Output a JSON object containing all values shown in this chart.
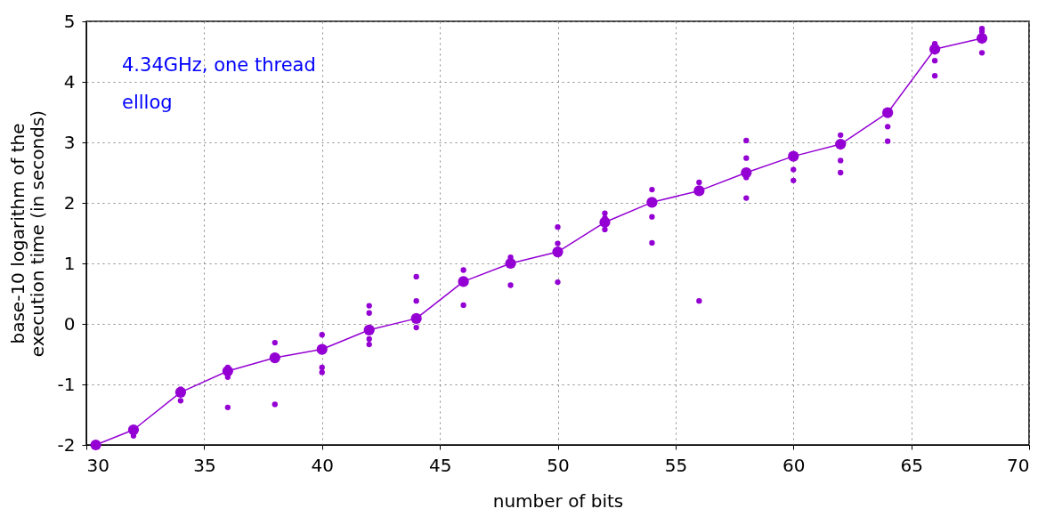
{
  "chart_data": {
    "type": "line",
    "xlabel": "number of bits",
    "ylabel": "base-10 logarithm of the\nexecution time (in seconds)",
    "annotations": [
      "4.34GHz, one thread",
      "elllog"
    ],
    "xlim": [
      30,
      70
    ],
    "ylim": [
      -2,
      5
    ],
    "xticks": [
      30,
      35,
      40,
      45,
      50,
      55,
      60,
      65,
      70
    ],
    "yticks": [
      -2,
      -1,
      0,
      1,
      2,
      3,
      4,
      5
    ],
    "grid": true,
    "series": [
      {
        "color": "#9400d3",
        "marker": "circle",
        "line_style": "solid",
        "x": [
          30.4,
          32,
          34,
          36,
          38,
          40,
          42,
          44,
          46,
          48,
          50,
          52,
          54,
          56,
          58,
          60,
          62,
          64,
          66,
          68
        ],
        "values": [
          -2,
          -1.75,
          -1.13,
          -0.78,
          -0.56,
          -0.42,
          -0.1,
          0.09,
          0.7,
          1.0,
          1.19,
          1.68,
          2.01,
          2.2,
          2.5,
          2.77,
          2.97,
          3.49,
          4.54,
          4.72
        ]
      },
      {
        "type": "scatter",
        "color": "#9400d3",
        "marker": "circle",
        "x": [
          32,
          34,
          34,
          36,
          36,
          36,
          38,
          38,
          40,
          40,
          40,
          42,
          42,
          42,
          42,
          44,
          44,
          44,
          46,
          46,
          48,
          48,
          50,
          50,
          50,
          52,
          52,
          52,
          54,
          54,
          54,
          56,
          56,
          58,
          58,
          58,
          58,
          60,
          60,
          62,
          62,
          62,
          64,
          64,
          66,
          66,
          66,
          68,
          68,
          68
        ],
        "values": [
          -1.85,
          -1.08,
          -1.27,
          -0.72,
          -0.88,
          -1.38,
          -0.31,
          -1.33,
          -0.18,
          -0.72,
          -0.8,
          0.3,
          0.18,
          -0.25,
          -0.34,
          0.78,
          0.38,
          -0.06,
          0.89,
          0.31,
          1.1,
          0.64,
          1.6,
          1.33,
          0.69,
          1.83,
          1.75,
          1.56,
          2.22,
          1.77,
          1.34,
          2.34,
          0.38,
          3.03,
          2.74,
          2.42,
          2.08,
          2.55,
          2.37,
          3.12,
          2.7,
          2.5,
          3.26,
          3.02,
          4.63,
          4.35,
          4.1,
          4.88,
          4.83,
          4.48
        ]
      }
    ]
  }
}
